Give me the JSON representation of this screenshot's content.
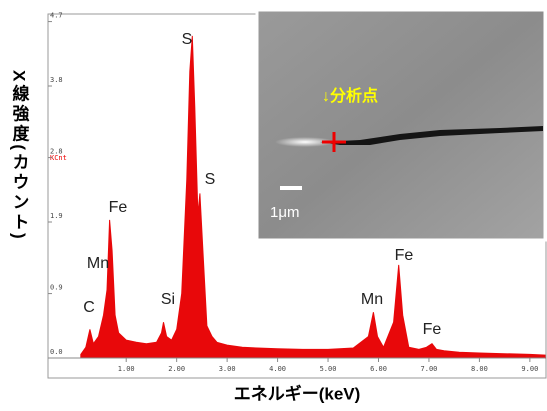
{
  "chart_data": {
    "type": "area",
    "y_label": "X線強度(カウント)",
    "x_label": "エネルギー(keV)",
    "y_unit": "KCnt",
    "color": "#e8080a",
    "x": [
      0.1,
      0.2,
      0.28,
      0.35,
      0.45,
      0.55,
      0.62,
      0.67,
      0.72,
      0.78,
      0.85,
      1.0,
      1.2,
      1.4,
      1.6,
      1.7,
      1.74,
      1.8,
      1.9,
      2.0,
      2.1,
      2.2,
      2.26,
      2.31,
      2.36,
      2.42,
      2.46,
      2.52,
      2.6,
      2.7,
      2.8,
      3.0,
      3.3,
      3.6,
      4.0,
      4.5,
      5.0,
      5.5,
      5.8,
      5.9,
      5.98,
      6.1,
      6.3,
      6.4,
      6.48,
      6.6,
      6.8,
      6.95,
      7.06,
      7.15,
      7.3,
      7.6,
      8.0,
      8.5,
      9.0,
      9.3
    ],
    "values": [
      0.05,
      0.15,
      0.4,
      0.2,
      0.3,
      0.6,
      0.95,
      1.93,
      1.5,
      0.6,
      0.35,
      0.25,
      0.22,
      0.2,
      0.22,
      0.35,
      0.5,
      0.3,
      0.25,
      0.4,
      0.9,
      2.5,
      4.0,
      4.5,
      3.5,
      2.0,
      2.3,
      1.5,
      0.45,
      0.3,
      0.22,
      0.18,
      0.15,
      0.14,
      0.13,
      0.12,
      0.12,
      0.14,
      0.3,
      0.64,
      0.3,
      0.15,
      0.5,
      1.3,
      0.6,
      0.15,
      0.12,
      0.15,
      0.2,
      0.12,
      0.1,
      0.08,
      0.07,
      0.06,
      0.05,
      0.04
    ],
    "xlim": [
      -0.55,
      9.3
    ],
    "xticks": [
      {
        "value": 1,
        "label": "1.00"
      },
      {
        "value": 2,
        "label": "2.00"
      },
      {
        "value": 3,
        "label": "3.00"
      },
      {
        "value": 4,
        "label": "4.00"
      },
      {
        "value": 5,
        "label": "5.00"
      },
      {
        "value": 6,
        "label": "6.00"
      },
      {
        "value": 7,
        "label": "7.00"
      },
      {
        "value": 8,
        "label": "8.00"
      },
      {
        "value": 9,
        "label": "9.00"
      }
    ],
    "ylim": [
      0,
      4.75
    ],
    "yticks": [
      {
        "value": 0,
        "label": "0.0"
      },
      0.9,
      1.9,
      2.8,
      3.8,
      4.7
    ],
    "annotations": [
      "C",
      "Mn",
      "Fe",
      "Si",
      "S",
      "S",
      "Mn",
      "Fe",
      "Fe"
    ]
  },
  "inset": {
    "marker_label": "↓分析点",
    "scale_label": "1μm"
  }
}
